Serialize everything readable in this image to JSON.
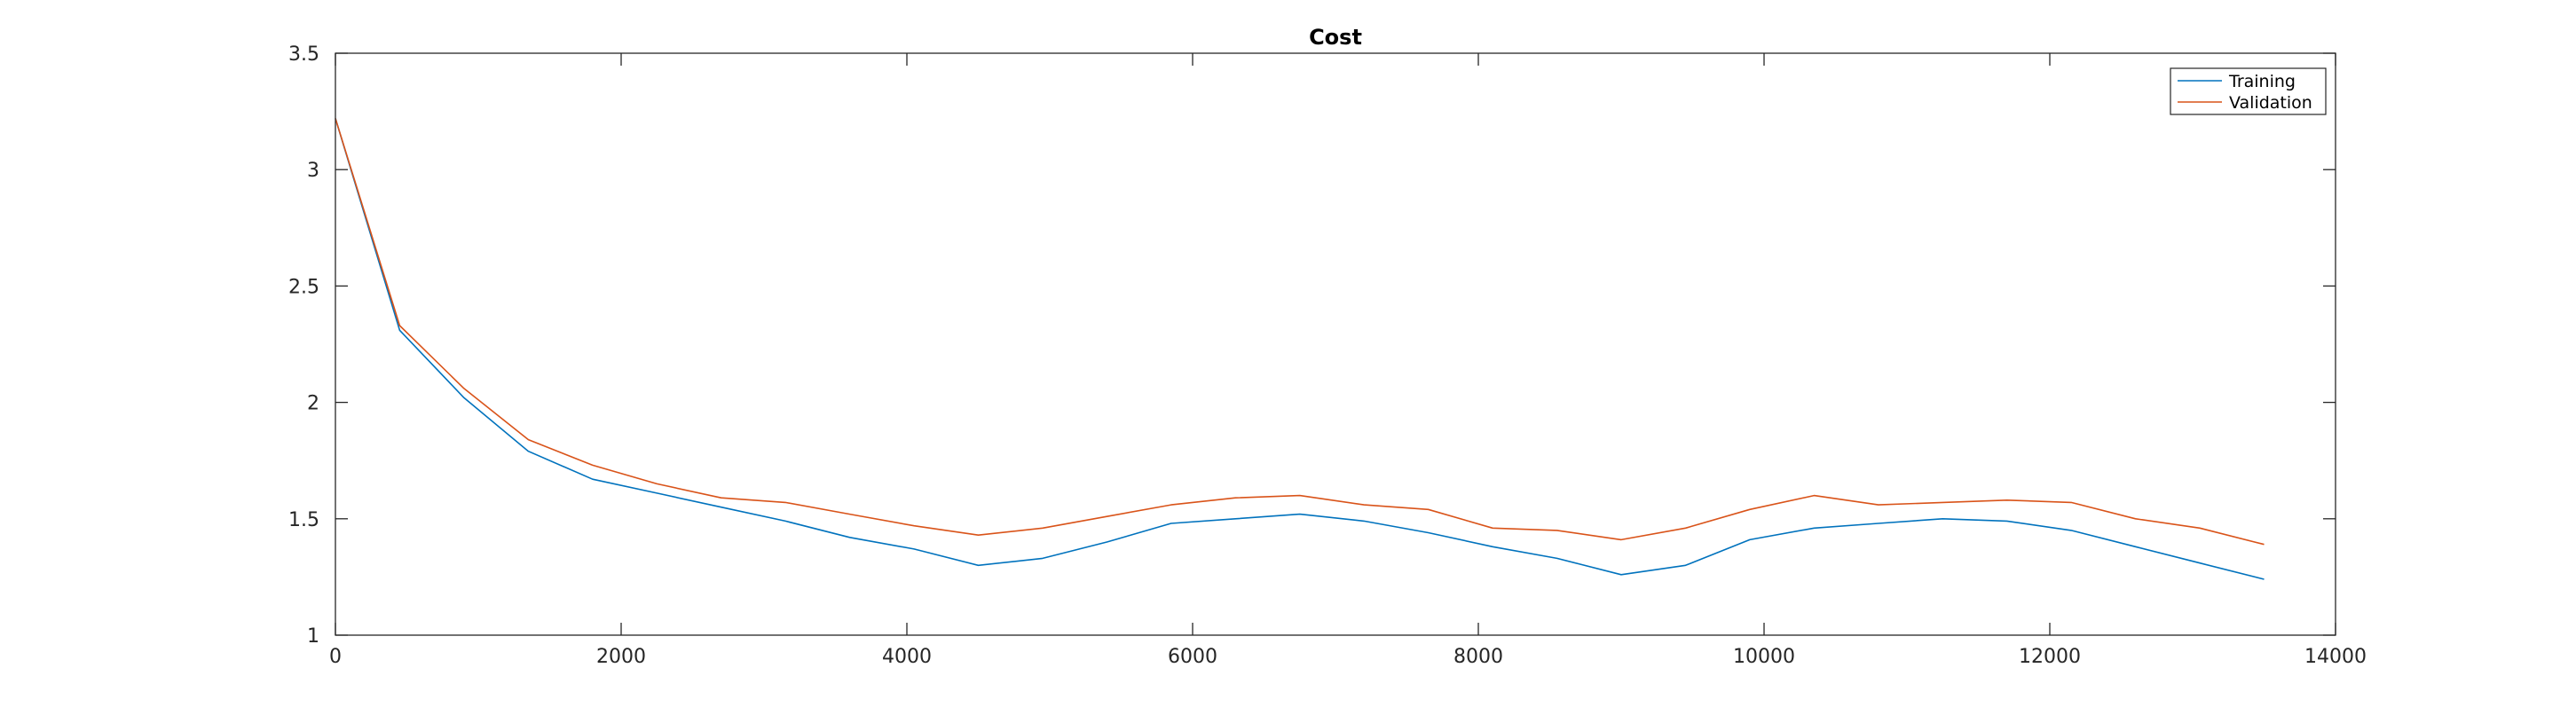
{
  "chart_data": {
    "type": "line",
    "title": "Cost",
    "xlabel": "",
    "ylabel": "",
    "xlim": [
      0,
      14000
    ],
    "ylim": [
      1,
      3.5
    ],
    "xticks": [
      0,
      2000,
      4000,
      6000,
      8000,
      10000,
      12000,
      14000
    ],
    "yticks": [
      1,
      1.5,
      2,
      2.5,
      3,
      3.5
    ],
    "xtick_labels": [
      "0",
      "2000",
      "4000",
      "6000",
      "8000",
      "10000",
      "12000",
      "14000"
    ],
    "ytick_labels": [
      "1",
      "1.5",
      "2",
      "2.5",
      "3",
      "3.5"
    ],
    "grid": false,
    "legend_position": "top-right",
    "x": [
      0,
      450,
      900,
      1350,
      1800,
      2250,
      2700,
      3150,
      3600,
      4050,
      4500,
      4950,
      5400,
      5850,
      6300,
      6750,
      7200,
      7650,
      8100,
      8550,
      9000,
      9450,
      9900,
      10350,
      10800,
      11250,
      11700,
      12150,
      12600,
      13050,
      13500
    ],
    "series": [
      {
        "name": "Training",
        "color": "#0072bd",
        "values": [
          3.22,
          2.31,
          2.02,
          1.79,
          1.67,
          1.61,
          1.55,
          1.49,
          1.42,
          1.37,
          1.3,
          1.33,
          1.4,
          1.48,
          1.5,
          1.52,
          1.49,
          1.44,
          1.38,
          1.33,
          1.26,
          1.3,
          1.41,
          1.46,
          1.48,
          1.5,
          1.49,
          1.45,
          1.38,
          1.31,
          1.24
        ]
      },
      {
        "name": "Validation",
        "color": "#d95319",
        "values": [
          3.22,
          2.33,
          2.06,
          1.84,
          1.73,
          1.65,
          1.59,
          1.57,
          1.52,
          1.47,
          1.43,
          1.46,
          1.51,
          1.56,
          1.59,
          1.6,
          1.56,
          1.54,
          1.46,
          1.45,
          1.41,
          1.46,
          1.54,
          1.6,
          1.56,
          1.57,
          1.58,
          1.57,
          1.5,
          1.46,
          1.39
        ]
      }
    ]
  }
}
